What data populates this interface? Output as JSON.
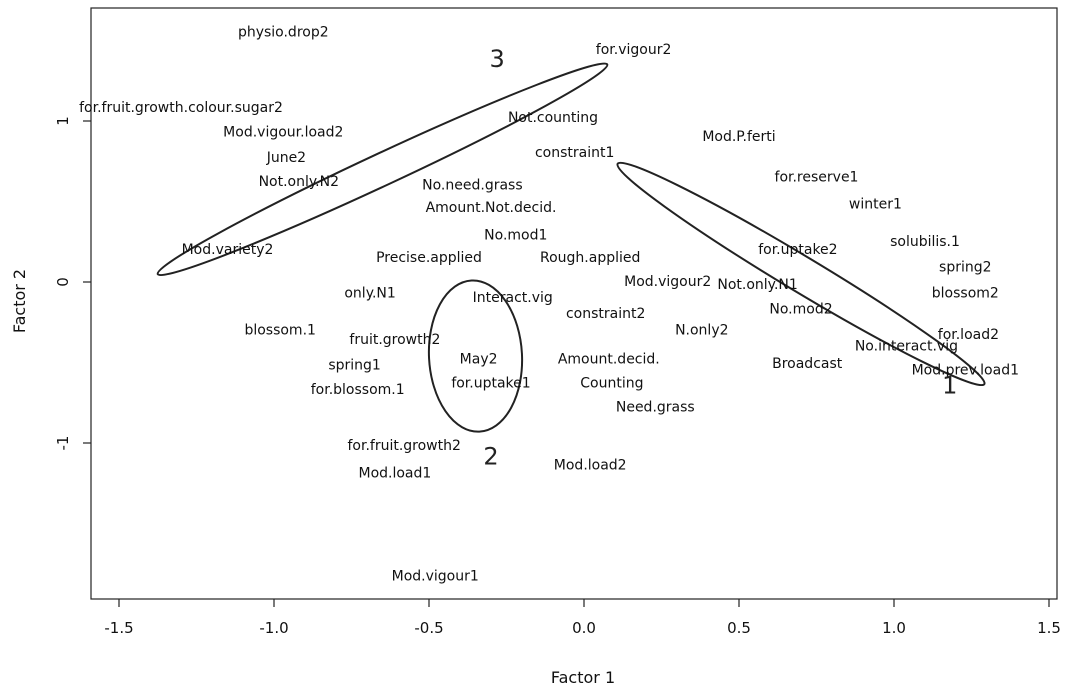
{
  "chart_data": {
    "type": "scatter",
    "title": "",
    "xlabel": "Factor 1",
    "ylabel": "Factor 2",
    "xlim": [
      -1.5,
      1.5
    ],
    "ylim": [
      -2.0,
      1.5
    ],
    "xticks": [
      -1.5,
      -1.0,
      -0.5,
      0.0,
      0.5,
      1.0,
      1.5
    ],
    "xtick_labels": [
      "-1.5",
      "-1.0",
      "-0.5",
      "0.0",
      "0.5",
      "1.0",
      "1.5"
    ],
    "yticks": [
      -1,
      0,
      1
    ],
    "ytick_labels": [
      "-1",
      "0",
      "1"
    ],
    "grid": false,
    "points": [
      {
        "label": "physio.drop2",
        "x": -0.97,
        "y": 1.55
      },
      {
        "label": "for.vigour2",
        "x": 0.16,
        "y": 1.44
      },
      {
        "label": "for.fruit.growth.colour.sugar2",
        "x": -1.3,
        "y": 1.08
      },
      {
        "label": "Not.counting",
        "x": -0.1,
        "y": 1.02
      },
      {
        "label": "Mod.vigour.load2",
        "x": -0.97,
        "y": 0.93
      },
      {
        "label": "Mod.P.ferti",
        "x": 0.5,
        "y": 0.9
      },
      {
        "label": "constraint1",
        "x": -0.03,
        "y": 0.8
      },
      {
        "label": "June2",
        "x": -0.96,
        "y": 0.77
      },
      {
        "label": "for.reserve1",
        "x": 0.75,
        "y": 0.65
      },
      {
        "label": "Not.only.N2",
        "x": -0.92,
        "y": 0.62
      },
      {
        "label": "No.need.grass",
        "x": -0.36,
        "y": 0.6
      },
      {
        "label": "winter1",
        "x": 0.94,
        "y": 0.48
      },
      {
        "label": "Amount.Not.decid.",
        "x": -0.3,
        "y": 0.46
      },
      {
        "label": "No.mod1",
        "x": -0.22,
        "y": 0.29
      },
      {
        "label": "solubilis.1",
        "x": 1.1,
        "y": 0.25
      },
      {
        "label": "for.uptake2",
        "x": 0.69,
        "y": 0.2
      },
      {
        "label": "Mod.variety2",
        "x": -1.15,
        "y": 0.2
      },
      {
        "label": "Precise.applied",
        "x": -0.5,
        "y": 0.15
      },
      {
        "label": "Rough.applied",
        "x": 0.02,
        "y": 0.15
      },
      {
        "label": "spring2",
        "x": 1.23,
        "y": 0.09
      },
      {
        "label": "Mod.vigour2",
        "x": 0.27,
        "y": 0.0
      },
      {
        "label": "Not.only.N1",
        "x": 0.56,
        "y": -0.02
      },
      {
        "label": "blossom2",
        "x": 1.23,
        "y": -0.07
      },
      {
        "label": "only.N1",
        "x": -0.69,
        "y": -0.07
      },
      {
        "label": "Interact.vig",
        "x": -0.23,
        "y": -0.1
      },
      {
        "label": "No.mod2",
        "x": 0.7,
        "y": -0.17
      },
      {
        "label": "constraint2",
        "x": 0.07,
        "y": -0.2
      },
      {
        "label": "blossom.1",
        "x": -0.98,
        "y": -0.3
      },
      {
        "label": "N.only2",
        "x": 0.38,
        "y": -0.3
      },
      {
        "label": "for.load2",
        "x": 1.24,
        "y": -0.33
      },
      {
        "label": "fruit.growth2",
        "x": -0.61,
        "y": -0.36
      },
      {
        "label": "No.interact.vig",
        "x": 1.04,
        "y": -0.4
      },
      {
        "label": "May2",
        "x": -0.34,
        "y": -0.48
      },
      {
        "label": "Amount.decid.",
        "x": 0.08,
        "y": -0.48
      },
      {
        "label": "Broadcast",
        "x": 0.72,
        "y": -0.51
      },
      {
        "label": "spring1",
        "x": -0.74,
        "y": -0.52
      },
      {
        "label": "Mod.prev.load1",
        "x": 1.23,
        "y": -0.55
      },
      {
        "label": "for.uptake1",
        "x": -0.3,
        "y": -0.63
      },
      {
        "label": "Counting",
        "x": 0.09,
        "y": -0.63
      },
      {
        "label": "for.blossom.1",
        "x": -0.73,
        "y": -0.67
      },
      {
        "label": "Need.grass",
        "x": 0.23,
        "y": -0.78
      },
      {
        "label": "for.fruit.growth2",
        "x": -0.58,
        "y": -1.02
      },
      {
        "label": "Mod.load2",
        "x": 0.02,
        "y": -1.14
      },
      {
        "label": "Mod.load1",
        "x": -0.61,
        "y": -1.19
      },
      {
        "label": "Mod.vigour1",
        "x": -0.48,
        "y": -1.83
      }
    ],
    "clusters": [
      {
        "label": "1",
        "x": 1.18,
        "y": -0.65,
        "ellipse": {
          "cx": 0.7,
          "cy": 0.05,
          "rx": 0.69,
          "ry": 0.11,
          "angle": 31
        }
      },
      {
        "label": "2",
        "x": -0.3,
        "y": -1.09,
        "ellipse": {
          "cx": -0.35,
          "cy": -0.46,
          "rx": 0.15,
          "ry": 0.47,
          "angle": -3
        }
      },
      {
        "label": "3",
        "x": -0.28,
        "y": 1.38,
        "ellipse": {
          "cx": -0.65,
          "cy": 0.7,
          "rx": 0.8,
          "ry": 0.1,
          "angle": -25
        }
      }
    ]
  }
}
